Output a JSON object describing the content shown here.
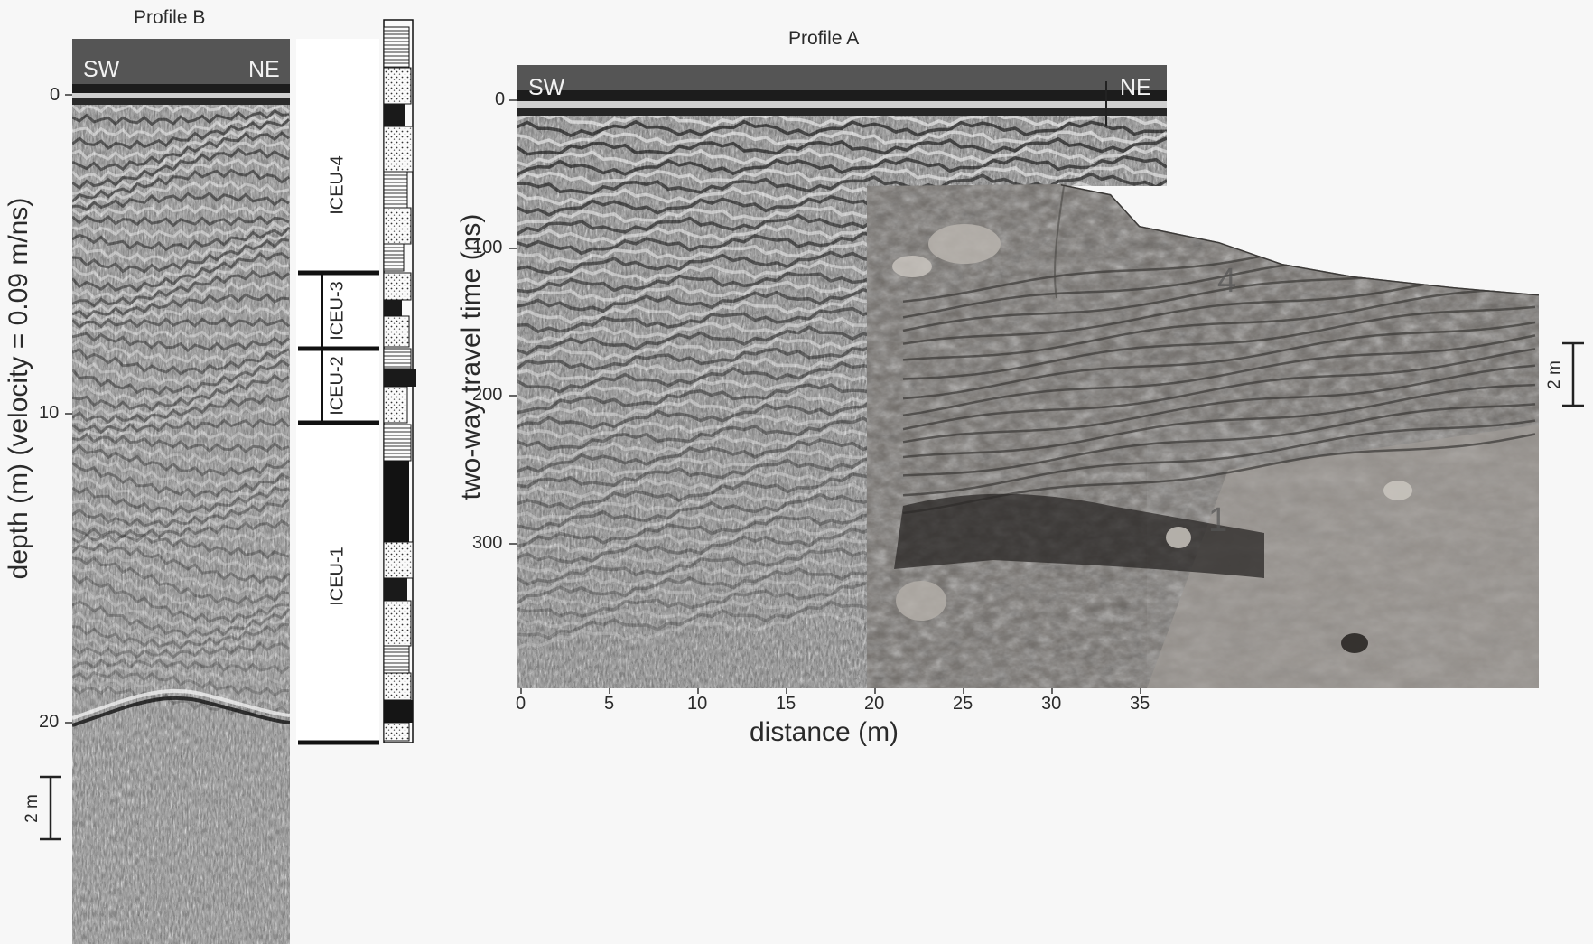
{
  "profile_b": {
    "title": "Profile B",
    "dir_left": "SW",
    "dir_right": "NE",
    "y_axis_label": "depth (m) (velocity = 0.09 m/ns)",
    "y_ticks": [
      "0",
      "10",
      "20"
    ],
    "scale_bar": "2 m"
  },
  "log": {
    "units": [
      "ICEU-4",
      "ICEU-3",
      "ICEU-2",
      "ICEU-1"
    ]
  },
  "profile_a": {
    "title": "Profile A",
    "dir_left": "SW",
    "dir_right": "NE",
    "y_axis_label": "two-way travel time (ns)",
    "y_ticks": [
      "0",
      "100",
      "200",
      "300"
    ],
    "x_axis_label": "distance (m)",
    "x_ticks": [
      "0",
      "5",
      "10",
      "15",
      "20",
      "25",
      "30",
      "35"
    ],
    "scale_bar": "2 m",
    "photo_unit_marks": [
      "4",
      "1"
    ]
  }
}
